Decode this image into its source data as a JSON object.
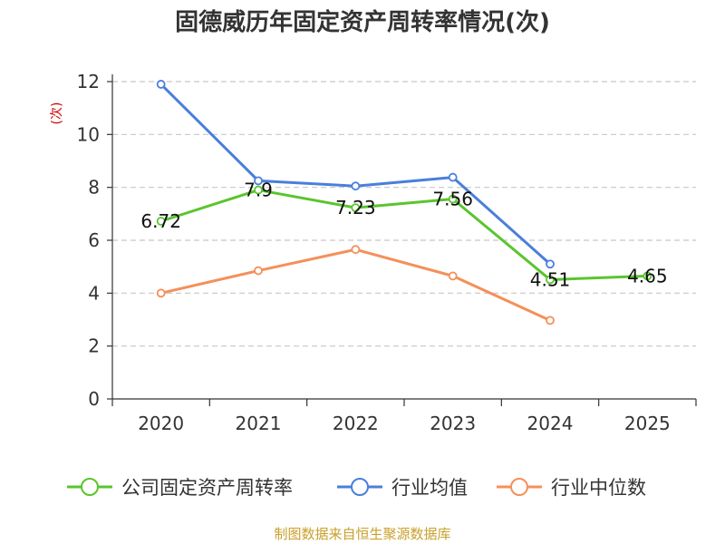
{
  "chart_data": {
    "type": "line",
    "title": "固德威历年固定资产周转率情况(次)",
    "ylabel": "(次)",
    "xlabel": "",
    "categories": [
      "2020",
      "2021",
      "2022",
      "2023",
      "2024",
      "2025"
    ],
    "ylim": [
      0,
      12
    ],
    "yticks": [
      0,
      2,
      4,
      6,
      8,
      10,
      12
    ],
    "grid": true,
    "legend_position": "bottom",
    "series": [
      {
        "name": "公司固定资产周转率",
        "color": "#5ac52e",
        "values": [
          6.72,
          7.9,
          7.23,
          7.56,
          4.51,
          4.65
        ],
        "labels": [
          "6.72",
          "7.9",
          "7.23",
          "7.56",
          "4.51",
          "4.65"
        ]
      },
      {
        "name": "行业均值",
        "color": "#4a7fdb",
        "values": [
          11.9,
          8.25,
          8.05,
          8.38,
          5.1,
          null
        ]
      },
      {
        "name": "行业中位数",
        "color": "#f4905a",
        "values": [
          4.0,
          4.85,
          5.65,
          4.65,
          2.97,
          null
        ]
      }
    ]
  },
  "footer": {
    "source": "制图数据来自恒生聚源数据库"
  }
}
